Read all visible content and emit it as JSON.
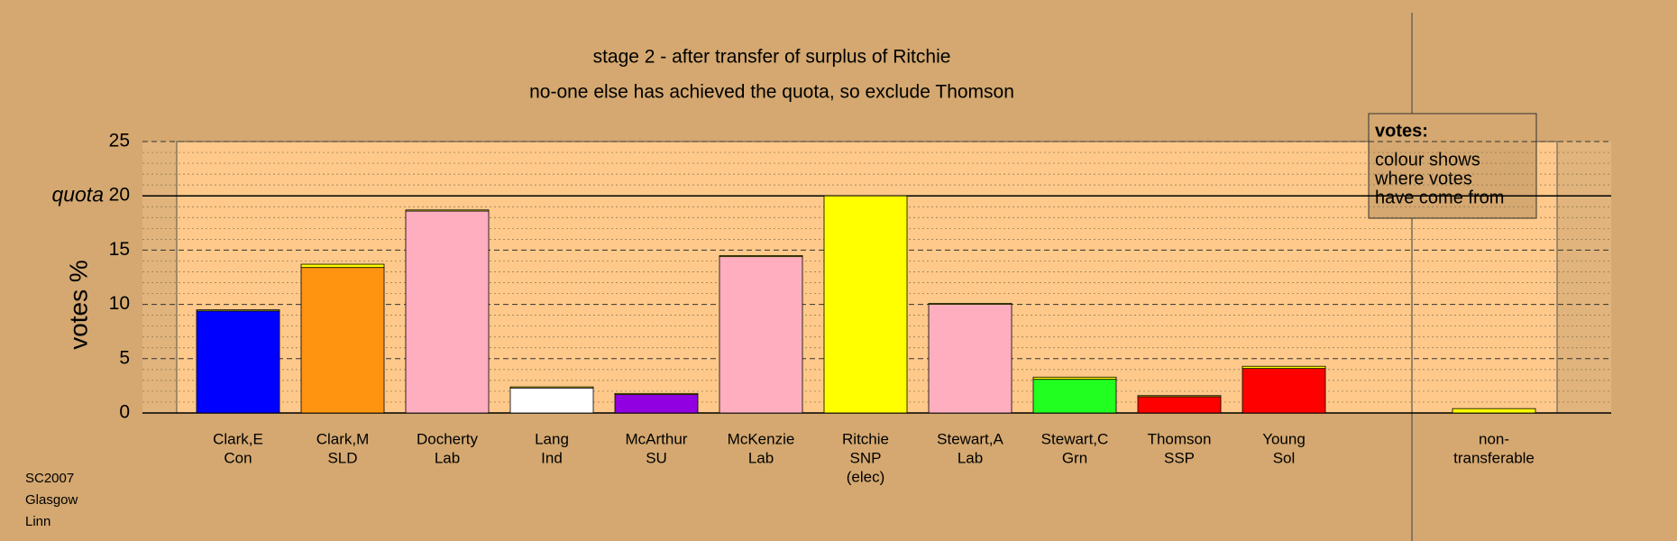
{
  "chart_data": {
    "type": "stacked_bar",
    "title": "stage 2 - after transfer of surplus of Ritchie",
    "subtitle": "no-one else has achieved the quota, so exclude Thomson",
    "ylabel": "votes %",
    "quota": {
      "value": 20,
      "label": "quota"
    },
    "categories": [
      [
        "Clark,E",
        "Con"
      ],
      [
        "Clark,M",
        "SLD"
      ],
      [
        "Docherty",
        "Lab"
      ],
      [
        "Lang",
        "Ind"
      ],
      [
        "McArthur",
        "SU"
      ],
      [
        "McKenzie",
        "Lab"
      ],
      [
        "Ritchie",
        "SNP",
        "(elec)"
      ],
      [
        "Stewart,A",
        "Lab"
      ],
      [
        "Stewart,C",
        "Grn"
      ],
      [
        "Thomson",
        "SSP"
      ],
      [
        "Young",
        "Sol"
      ],
      [
        "non-",
        "transferable"
      ]
    ],
    "series": [
      {
        "colors": [
          "#0000ff",
          "#ff9410",
          "#ffaec0",
          "#ffffff",
          "#9000e0",
          "#ffaec0",
          "#ffff00",
          "#ffaec0",
          "#20ff20",
          "#ff0000",
          "#ff0000",
          "#ffff00"
        ],
        "values": [
          9.4,
          13.4,
          18.6,
          2.3,
          1.7,
          14.4,
          20,
          10.0,
          3.1,
          1.5,
          4.1,
          0
        ]
      },
      {
        "colors": [
          "#ffff00",
          "#ffff00",
          "#ffff00",
          "#ffff00",
          "#ffff00",
          "#ffff00",
          "#ffff00",
          "#ffff00",
          "#ffff00",
          "#ffff00",
          "#ffff00",
          "#ffff00"
        ],
        "values": [
          0.1,
          0.3,
          0.1,
          0.1,
          0.1,
          0.1,
          0,
          0.1,
          0.2,
          0.1,
          0.2,
          0.4
        ]
      }
    ],
    "ylim": [
      0,
      25
    ],
    "yticks": [
      0,
      5,
      10,
      15,
      20,
      25
    ],
    "minor_yticks": [
      1,
      2,
      3,
      4,
      6,
      7,
      8,
      9,
      11,
      12,
      13,
      14,
      16,
      17,
      18,
      19,
      21,
      22,
      23,
      24
    ],
    "legend": {
      "title": "votes:",
      "lines": [
        "colour shows",
        "where votes",
        "have come from"
      ]
    },
    "footnote": [
      "SC2007",
      "Glasgow",
      "Linn"
    ]
  }
}
